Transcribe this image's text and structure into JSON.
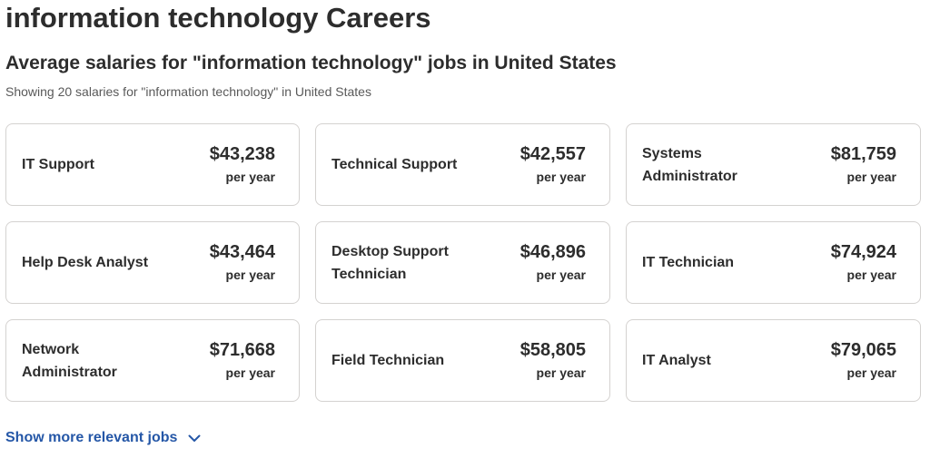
{
  "page": {
    "title": "information technology Careers"
  },
  "salaries": {
    "heading": "Average salaries for \"information technology\" jobs in United States",
    "subtitle": "Showing 20 salaries for \"information technology\" in United States",
    "cards": [
      {
        "title": "IT Support",
        "amount": "$43,238",
        "period": "per year"
      },
      {
        "title": "Technical Support",
        "amount": "$42,557",
        "period": "per year"
      },
      {
        "title": "Systems Administrator",
        "amount": "$81,759",
        "period": "per year"
      },
      {
        "title": "Help Desk Analyst",
        "amount": "$43,464",
        "period": "per year"
      },
      {
        "title": "Desktop Support Technician",
        "amount": "$46,896",
        "period": "per year"
      },
      {
        "title": "IT Technician",
        "amount": "$74,924",
        "period": "per year"
      },
      {
        "title": "Network Administrator",
        "amount": "$71,668",
        "period": "per year"
      },
      {
        "title": "Field Technician",
        "amount": "$58,805",
        "period": "per year"
      },
      {
        "title": "IT Analyst",
        "amount": "$79,065",
        "period": "per year"
      }
    ]
  },
  "show_more": {
    "label": "Show more relevant jobs",
    "icon": "chevron-down-icon"
  },
  "colors": {
    "link": "#2557a7",
    "text": "#2d2d2d",
    "border": "#d4d2d0"
  }
}
